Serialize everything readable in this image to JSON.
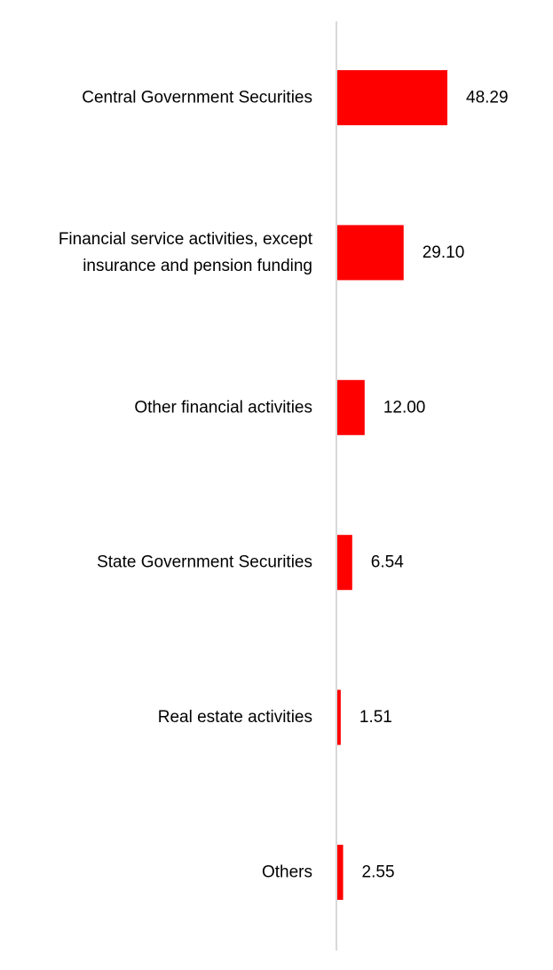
{
  "chart_data": {
    "type": "bar",
    "orientation": "horizontal",
    "categories": [
      "Central Government Securities",
      "Financial service activities, except insurance and pension funding",
      "Other financial activities",
      "State Government Securities",
      "Real estate activities",
      "Others"
    ],
    "category_lines": [
      [
        "Central Government Securities"
      ],
      [
        "Financial service activities, except",
        "insurance and pension funding"
      ],
      [
        "Other financial activities"
      ],
      [
        "State Government Securities"
      ],
      [
        "Real estate activities"
      ],
      [
        "Others"
      ]
    ],
    "values": [
      48.29,
      29.1,
      12.0,
      6.54,
      1.51,
      2.55
    ],
    "value_labels": [
      "48.29",
      "29.10",
      "12.00",
      "6.54",
      "1.51",
      "2.55"
    ],
    "bar_color": "#ff0000",
    "axis_color": "#d9d9d9",
    "xlim": [
      0,
      48.29
    ],
    "grid": false,
    "legend": "none",
    "title": "",
    "xlabel": "",
    "ylabel": ""
  }
}
